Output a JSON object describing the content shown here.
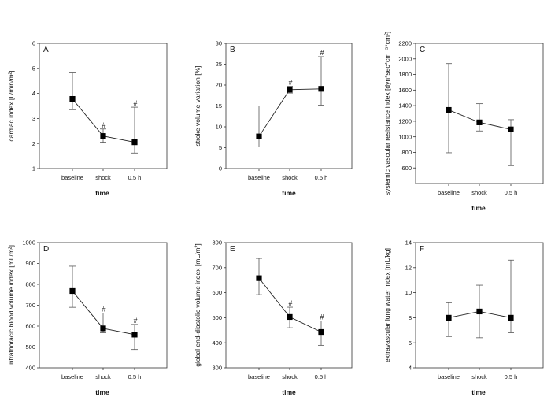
{
  "figure": {
    "chart_data": [
      {
        "type": "line",
        "panel_label": "A",
        "ylabel": "cardiac index [L/min/m²]",
        "xlabel": "time",
        "categories": [
          "baseline",
          "shock",
          "0.5 h"
        ],
        "values": [
          3.78,
          2.3,
          2.05
        ],
        "err_low": [
          3.35,
          2.05,
          1.62
        ],
        "err_high": [
          4.82,
          2.58,
          3.45
        ],
        "significance": [
          "",
          "#",
          "#"
        ],
        "ylim": [
          1,
          6
        ],
        "yticks": [
          1,
          2,
          3,
          4,
          5,
          6
        ]
      },
      {
        "type": "line",
        "panel_label": "B",
        "ylabel": "stroke volume variation [%]",
        "xlabel": "time",
        "categories": [
          "baseline",
          "shock",
          "0.5 h"
        ],
        "values": [
          7.7,
          18.9,
          19.1
        ],
        "err_low": [
          5.2,
          18.1,
          15.2
        ],
        "err_high": [
          15.0,
          19.7,
          26.8
        ],
        "significance": [
          "",
          "#",
          "#"
        ],
        "ylim": [
          0,
          30
        ],
        "yticks": [
          0,
          5,
          10,
          15,
          20,
          25,
          30
        ]
      },
      {
        "type": "line",
        "panel_label": "C",
        "ylabel": "systemic vascular resistance index [dyn*sec*cm⁻⁵*cm²]",
        "xlabel": "time",
        "categories": [
          "baseline",
          "shock",
          "0.5 h"
        ],
        "values": [
          1345,
          1185,
          1095
        ],
        "err_low": [
          795,
          1075,
          630
        ],
        "err_high": [
          1940,
          1425,
          1220
        ],
        "significance": [
          "",
          "",
          ""
        ],
        "ylim": [
          400,
          2200
        ],
        "yticks": [
          600,
          800,
          1000,
          1200,
          1400,
          1600,
          1800,
          2000,
          2200
        ]
      },
      {
        "type": "line",
        "panel_label": "D",
        "ylabel": "intrathoracic blood volume index [mL/m²]",
        "xlabel": "time",
        "categories": [
          "baseline",
          "shock",
          "0.5 h"
        ],
        "values": [
          768,
          589,
          559
        ],
        "err_low": [
          690,
          568,
          488
        ],
        "err_high": [
          887,
          662,
          608
        ],
        "significance": [
          "",
          "#",
          "#"
        ],
        "ylim": [
          400,
          1000
        ],
        "yticks": [
          400,
          500,
          600,
          700,
          800,
          900,
          1000
        ]
      },
      {
        "type": "line",
        "panel_label": "E",
        "ylabel": "global end-diastolic volume index [mL/m²]",
        "xlabel": "time",
        "categories": [
          "baseline",
          "shock",
          "0.5 h"
        ],
        "values": [
          658,
          503,
          443
        ],
        "err_low": [
          592,
          460,
          390
        ],
        "err_high": [
          737,
          542,
          487
        ],
        "significance": [
          "",
          "#",
          "#"
        ],
        "ylim": [
          300,
          800
        ],
        "yticks": [
          300,
          400,
          500,
          600,
          700,
          800
        ]
      },
      {
        "type": "line",
        "panel_label": "F",
        "ylabel": "extravascular lung water index [mL/kg]",
        "xlabel": "time",
        "categories": [
          "baseline",
          "shock",
          "0.5 h"
        ],
        "values": [
          8.0,
          8.5,
          8.0
        ],
        "err_low": [
          6.5,
          6.4,
          6.8
        ],
        "err_high": [
          9.2,
          10.6,
          12.6
        ],
        "significance": [
          "",
          "",
          ""
        ],
        "ylim": [
          4,
          14
        ],
        "yticks": [
          4,
          6,
          8,
          10,
          12,
          14
        ]
      }
    ]
  }
}
